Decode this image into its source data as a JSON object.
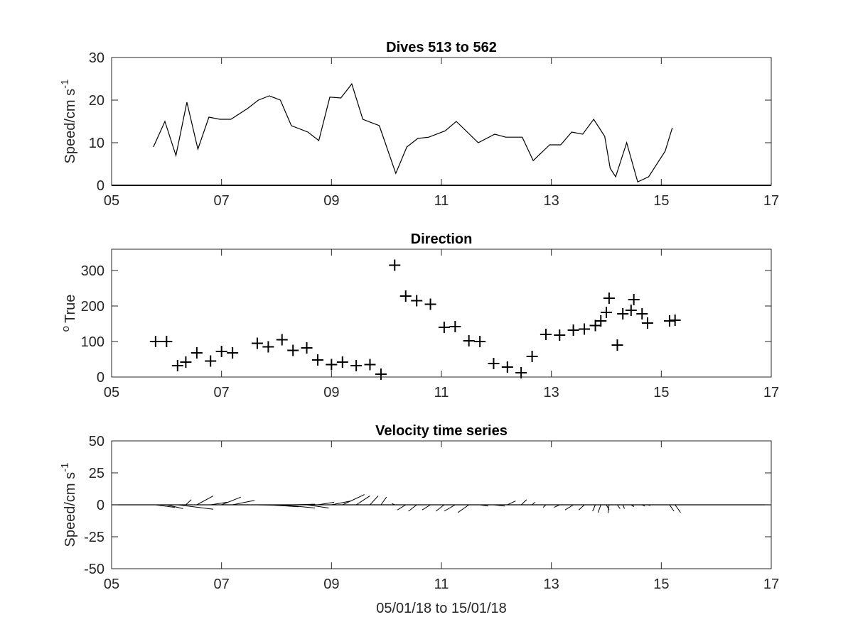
{
  "chart_data": [
    {
      "type": "line",
      "title": "Dives 513 to 562",
      "ylabel": "Speed/cm s",
      "ylabel_exponent": "-1",
      "xlim": [
        5,
        17
      ],
      "ylim": [
        0,
        30
      ],
      "xticks": [
        5,
        7,
        9,
        11,
        13,
        15,
        17
      ],
      "xtick_labels": [
        "05",
        "07",
        "09",
        "11",
        "13",
        "15",
        "17"
      ],
      "yticks": [
        0,
        10,
        20,
        30
      ],
      "ytick_labels": [
        "0",
        "10",
        "20",
        "30"
      ],
      "grid": false,
      "color": "#000000",
      "x": [
        5.76,
        5.97,
        6.17,
        6.37,
        6.57,
        6.77,
        6.97,
        7.17,
        7.47,
        7.67,
        7.87,
        8.07,
        8.27,
        8.57,
        8.77,
        8.97,
        9.17,
        9.37,
        9.57,
        9.87,
        10.17,
        10.37,
        10.57,
        10.77,
        11.07,
        11.27,
        11.67,
        11.97,
        12.17,
        12.47,
        12.67,
        12.97,
        13.17,
        13.37,
        13.57,
        13.77,
        13.97,
        14.07,
        14.17,
        14.37,
        14.57,
        14.77,
        15.07,
        15.2
      ],
      "y": [
        9,
        15,
        7,
        19.5,
        8.5,
        16,
        15.5,
        15.5,
        18,
        20,
        21,
        20,
        14,
        12.5,
        10.5,
        20.7,
        20.5,
        23.8,
        15.5,
        14,
        2.8,
        9,
        11,
        11.3,
        12.8,
        15,
        10,
        12,
        11.3,
        11.3,
        5.8,
        9.5,
        9.5,
        12.5,
        12,
        15.5,
        11.5,
        4,
        2,
        10,
        0.8,
        2,
        8,
        13.5
      ]
    },
    {
      "type": "scatter",
      "title": "Direction",
      "ylabel": "True",
      "ylabel_prefix": "o",
      "marker": "+",
      "xlim": [
        5,
        17
      ],
      "ylim": [
        0,
        360
      ],
      "xticks": [
        5,
        7,
        9,
        11,
        13,
        15,
        17
      ],
      "xtick_labels": [
        "05",
        "07",
        "09",
        "11",
        "13",
        "15",
        "17"
      ],
      "yticks": [
        0,
        100,
        200,
        300
      ],
      "ytick_labels": [
        "0",
        "100",
        "200",
        "300"
      ],
      "grid": false,
      "color": "#000000",
      "x": [
        5.8,
        6.0,
        6.2,
        6.35,
        6.55,
        6.8,
        7.0,
        7.2,
        7.65,
        7.85,
        8.1,
        8.3,
        8.55,
        8.75,
        9.0,
        9.2,
        9.45,
        9.7,
        9.9,
        10.15,
        10.35,
        10.55,
        10.8,
        11.05,
        11.25,
        11.5,
        11.7,
        11.95,
        12.2,
        12.45,
        12.65,
        12.9,
        13.15,
        13.4,
        13.6,
        13.8,
        13.9,
        14.0,
        14.05,
        14.2,
        14.3,
        14.45,
        14.5,
        14.65,
        14.75,
        15.15,
        15.25
      ],
      "y": [
        100,
        100,
        32,
        42,
        68,
        45,
        72,
        68,
        95,
        85,
        105,
        75,
        82,
        48,
        35,
        42,
        32,
        35,
        8,
        315,
        228,
        215,
        205,
        140,
        142,
        102,
        100,
        38,
        28,
        12,
        58,
        120,
        118,
        132,
        135,
        145,
        158,
        182,
        222,
        90,
        178,
        188,
        218,
        178,
        152,
        158,
        160
      ]
    },
    {
      "type": "quiver",
      "title": "Velocity time series",
      "ylabel": "Speed/cm s",
      "ylabel_exponent": "-1",
      "xlabel": "05/01/18 to 15/01/18",
      "xlim": [
        5,
        17
      ],
      "ylim": [
        -50,
        50
      ],
      "xticks": [
        5,
        7,
        9,
        11,
        13,
        15,
        17
      ],
      "xtick_labels": [
        "05",
        "07",
        "09",
        "11",
        "13",
        "15",
        "17"
      ],
      "yticks": [
        -50,
        -25,
        0,
        25,
        50
      ],
      "ytick_labels": [
        "-50",
        "-25",
        "0",
        "25",
        "50"
      ],
      "grid": false,
      "color": "#000000",
      "baseline": 0,
      "vectors": [
        {
          "x": 5.8,
          "dx": 0.35,
          "dy": -2
        },
        {
          "x": 6.0,
          "dx": 0.3,
          "dy": -3
        },
        {
          "x": 6.2,
          "dx": 0.65,
          "dy": -3.5
        },
        {
          "x": 6.35,
          "dx": 0.1,
          "dy": 4
        },
        {
          "x": 6.55,
          "dx": 0.3,
          "dy": 7
        },
        {
          "x": 6.8,
          "dx": 0.3,
          "dy": 2
        },
        {
          "x": 7.0,
          "dx": 0.35,
          "dy": 6
        },
        {
          "x": 7.2,
          "dx": 0.4,
          "dy": 3.5
        },
        {
          "x": 7.65,
          "dx": 0.5,
          "dy": -0.5
        },
        {
          "x": 7.85,
          "dx": 0.55,
          "dy": -1.5
        },
        {
          "x": 8.1,
          "dx": 0.6,
          "dy": -2.5
        },
        {
          "x": 8.3,
          "dx": 0.4,
          "dy": 0.5
        },
        {
          "x": 8.55,
          "dx": 0.4,
          "dy": -2.5
        },
        {
          "x": 8.75,
          "dx": 0.3,
          "dy": 2
        },
        {
          "x": 9.0,
          "dx": 0.35,
          "dy": 3
        },
        {
          "x": 9.2,
          "dx": 0.4,
          "dy": 8
        },
        {
          "x": 9.45,
          "dx": 0.25,
          "dy": 7
        },
        {
          "x": 9.7,
          "dx": 0.15,
          "dy": 7
        },
        {
          "x": 9.9,
          "dx": 0.1,
          "dy": 6
        },
        {
          "x": 10.15,
          "dx": -0.05,
          "dy": 1
        },
        {
          "x": 10.35,
          "dx": -0.15,
          "dy": -4
        },
        {
          "x": 10.55,
          "dx": -0.15,
          "dy": -5
        },
        {
          "x": 10.8,
          "dx": -0.15,
          "dy": -4
        },
        {
          "x": 11.05,
          "dx": -0.15,
          "dy": -5
        },
        {
          "x": 11.25,
          "dx": -0.2,
          "dy": -5
        },
        {
          "x": 11.5,
          "dx": -0.2,
          "dy": -6
        },
        {
          "x": 11.7,
          "dx": 0.15,
          "dy": -1
        },
        {
          "x": 11.95,
          "dx": 0.2,
          "dy": -1
        },
        {
          "x": 12.2,
          "dx": 0.15,
          "dy": 3
        },
        {
          "x": 12.45,
          "dx": 0.1,
          "dy": 4
        },
        {
          "x": 12.65,
          "dx": 0.05,
          "dy": 2
        },
        {
          "x": 12.9,
          "dx": -0.05,
          "dy": -2
        },
        {
          "x": 13.15,
          "dx": -0.1,
          "dy": -2
        },
        {
          "x": 13.4,
          "dx": -0.15,
          "dy": -4
        },
        {
          "x": 13.6,
          "dx": -0.1,
          "dy": -4
        },
        {
          "x": 13.8,
          "dx": -0.05,
          "dy": -5
        },
        {
          "x": 13.9,
          "dx": -0.05,
          "dy": -6
        },
        {
          "x": 14.0,
          "dx": 0.05,
          "dy": -4
        },
        {
          "x": 14.05,
          "dx": -0.02,
          "dy": -6.5
        },
        {
          "x": 14.2,
          "dx": 0.05,
          "dy": -3
        },
        {
          "x": 14.3,
          "dx": 0.03,
          "dy": -3
        },
        {
          "x": 14.45,
          "dx": 0.05,
          "dy": -1.5
        },
        {
          "x": 14.5,
          "dx": -0.02,
          "dy": -1
        },
        {
          "x": 14.65,
          "dx": 0.05,
          "dy": -1
        },
        {
          "x": 14.75,
          "dx": 0.05,
          "dy": -0.5
        },
        {
          "x": 15.15,
          "dx": 0.08,
          "dy": -5
        },
        {
          "x": 15.25,
          "dx": 0.1,
          "dy": -6
        }
      ]
    }
  ]
}
